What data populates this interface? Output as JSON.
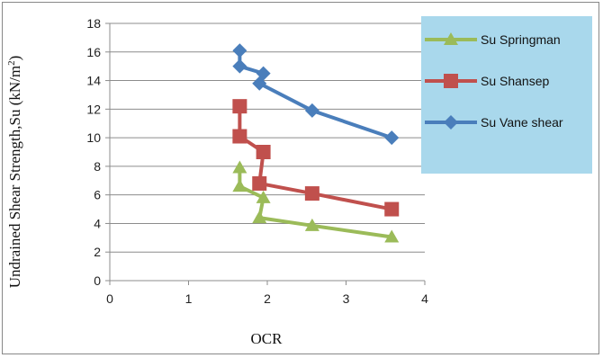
{
  "chart_data": {
    "type": "line",
    "xlabel": "OCR",
    "ylabel_main": "Undrained Shear Strength,Su (kN/m",
    "ylabel_sup": "2",
    "ylabel_end": ")",
    "xlim": [
      0,
      4
    ],
    "ylim": [
      0,
      18
    ],
    "xticks": [
      0,
      1,
      2,
      3,
      4
    ],
    "yticks": [
      0,
      2,
      4,
      6,
      8,
      10,
      12,
      14,
      16,
      18
    ],
    "grid": "horizontal",
    "legend_position": "right",
    "series": [
      {
        "name": "Su Springman",
        "color": "#9bbb59",
        "marker": "triangle",
        "points": [
          [
            1.65,
            7.9
          ],
          [
            1.65,
            6.6
          ],
          [
            1.95,
            5.8
          ],
          [
            1.9,
            4.4
          ],
          [
            2.57,
            3.85
          ],
          [
            3.58,
            3.05
          ]
        ]
      },
      {
        "name": "Su Shansep",
        "color": "#c0504d",
        "marker": "square",
        "points": [
          [
            1.65,
            12.2
          ],
          [
            1.65,
            10.1
          ],
          [
            1.95,
            9.0
          ],
          [
            1.9,
            6.8
          ],
          [
            2.57,
            6.1
          ],
          [
            3.58,
            5.0
          ]
        ]
      },
      {
        "name": "Su Vane shear",
        "color": "#4a7ebb",
        "marker": "diamond",
        "points": [
          [
            1.65,
            16.1
          ],
          [
            1.65,
            15.0
          ],
          [
            1.95,
            14.5
          ],
          [
            1.9,
            13.8
          ],
          [
            2.57,
            11.9
          ],
          [
            3.58,
            10.0
          ]
        ]
      }
    ]
  }
}
